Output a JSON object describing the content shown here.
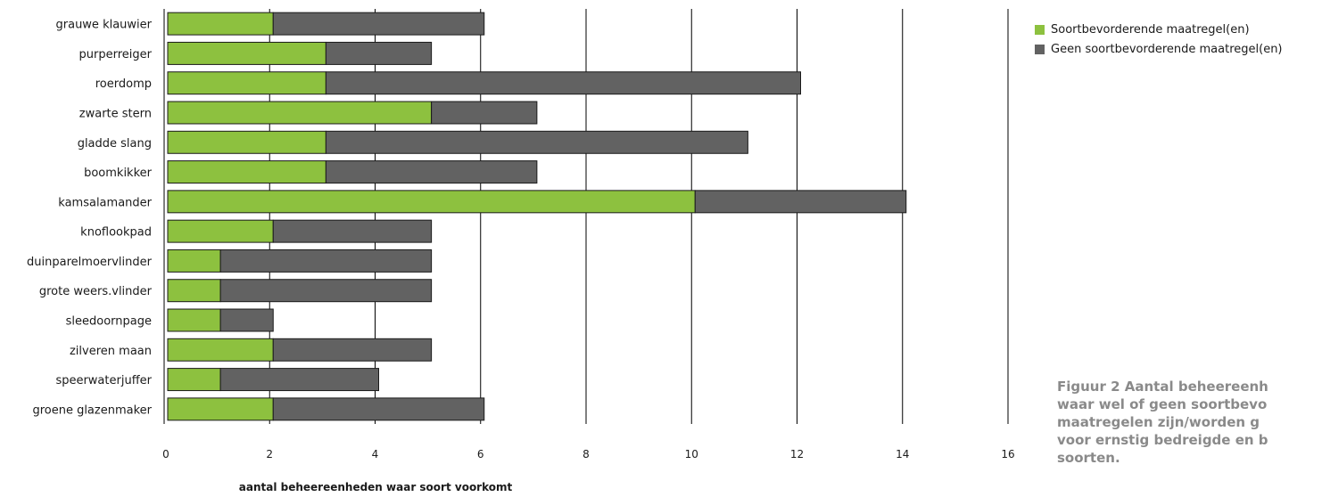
{
  "chart_data": {
    "type": "bar",
    "orientation": "horizontal",
    "stacked": true,
    "categories": [
      "grauwe klauwier",
      "purperreiger",
      "roerdomp",
      "zwarte stern",
      "gladde slang",
      "boomkikker",
      "kamsalamander",
      "knoflookpad",
      "duinparelmoervlinder",
      "grote weers.vlinder",
      "sleedoornpage",
      "zilveren maan",
      "speerwaterjuffer",
      "groene glazenmaker"
    ],
    "series": [
      {
        "name": "Soortbevorderende maatregel(en)",
        "color": "#8dc13f",
        "values": [
          2,
          3,
          3,
          5,
          3,
          3,
          10,
          2,
          1,
          1,
          1,
          2,
          1,
          2
        ]
      },
      {
        "name": "Geen soortbevorderende maatregel(en)",
        "color": "#626262",
        "values": [
          4,
          2,
          9,
          2,
          8,
          4,
          4,
          3,
          4,
          4,
          1,
          3,
          3,
          4
        ]
      }
    ],
    "xlabel": "aantal beheereenheden waar soort voorkomt",
    "ylabel": "",
    "xlim": [
      0,
      16
    ],
    "xticks": [
      "0",
      "2",
      "4",
      "6",
      "8",
      "10",
      "12",
      "14",
      "16"
    ],
    "grid": "vertical",
    "legend": "top-right"
  },
  "caption": {
    "lines": [
      "Figuur 2 Aantal beheereenh",
      "waar wel of geen soortbevo",
      "maatregelen zijn/worden g",
      "voor ernstig bedreigde en b",
      "soorten."
    ]
  }
}
